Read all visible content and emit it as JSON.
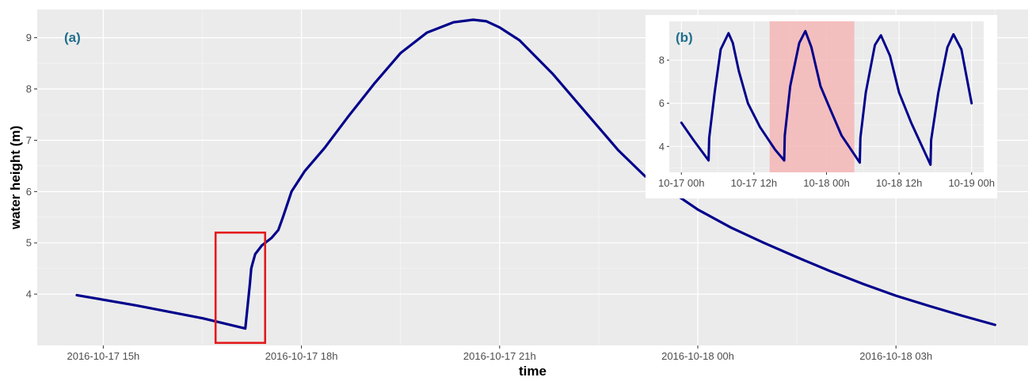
{
  "chart_data": [
    {
      "type": "line",
      "panel_label": "(a)",
      "xlabel": "time",
      "ylabel": "water height (m)",
      "x_tick_labels": [
        "2016-10-17 15h",
        "2016-10-17 18h",
        "2016-10-17 21h",
        "2016-10-18 00h",
        "2016-10-18 03h"
      ],
      "x_tick_hours": [
        15,
        18,
        21,
        24,
        27
      ],
      "y_ticks": [
        4,
        5,
        6,
        7,
        8,
        9
      ],
      "xlim_hours": [
        14.0,
        29.0
      ],
      "ylim": [
        3.0,
        9.55
      ],
      "grid": true,
      "line_color": "#00008b",
      "highlight_box": {
        "x": [
          16.7,
          17.45
        ],
        "y": [
          3.05,
          5.2
        ],
        "color": "#e31a1c"
      },
      "series": [
        {
          "x_hours": [
            14.6,
            15.5,
            16.5,
            17.15,
            17.22,
            17.24,
            17.26,
            17.3,
            17.4,
            17.55,
            17.65,
            17.72,
            17.85,
            18.05,
            18.35,
            18.7,
            19.1,
            19.5,
            19.9,
            20.3,
            20.6,
            20.8,
            21.0,
            21.3,
            21.8,
            22.3,
            22.8,
            23.2,
            23.6,
            24.0,
            24.5,
            25.0,
            25.5,
            26.0,
            26.5,
            27.0,
            27.5,
            28.0,
            28.5
          ],
          "y": [
            3.98,
            3.78,
            3.53,
            3.33,
            4.2,
            4.5,
            4.6,
            4.78,
            4.95,
            5.1,
            5.25,
            5.5,
            6.0,
            6.4,
            6.85,
            7.45,
            8.1,
            8.7,
            9.1,
            9.3,
            9.35,
            9.32,
            9.2,
            8.95,
            8.3,
            7.55,
            6.8,
            6.3,
            6.0,
            5.65,
            5.3,
            5.0,
            4.72,
            4.45,
            4.2,
            3.97,
            3.77,
            3.58,
            3.4
          ]
        }
      ]
    },
    {
      "type": "line",
      "panel_label": "(b)",
      "x_tick_labels": [
        "10-17 00h",
        "10-17 12h",
        "10-18 00h",
        "10-18 12h",
        "10-19 00h"
      ],
      "x_tick_hours": [
        0,
        12,
        24,
        36,
        48
      ],
      "y_ticks": [
        4,
        6,
        8
      ],
      "xlim_hours": [
        -2.0,
        50.0
      ],
      "ylim": [
        2.8,
        9.8
      ],
      "grid": true,
      "line_color": "#00008b",
      "highlight_band": {
        "x": [
          14.6,
          28.6
        ],
        "color": "#f4b6b6"
      },
      "series": [
        {
          "x_hours": [
            0,
            2,
            4.5,
            4.6,
            5.5,
            6.5,
            7.8,
            8.5,
            9.5,
            11,
            13,
            15.5,
            17,
            17.1,
            18,
            19.5,
            20.5,
            21.5,
            23,
            24.5,
            26.5,
            29.5,
            29.6,
            30.5,
            32,
            33,
            34.5,
            36,
            38,
            41.2,
            41.3,
            42.5,
            44,
            45,
            46.3,
            48
          ],
          "y": [
            5.1,
            4.3,
            3.35,
            4.4,
            6.5,
            8.5,
            9.25,
            8.8,
            7.5,
            6.0,
            4.9,
            3.85,
            3.35,
            4.5,
            6.8,
            8.8,
            9.35,
            8.6,
            6.8,
            5.8,
            4.5,
            3.25,
            4.4,
            6.5,
            8.7,
            9.15,
            8.2,
            6.5,
            5.1,
            3.15,
            4.3,
            6.5,
            8.6,
            9.2,
            8.5,
            6.0
          ]
        }
      ]
    }
  ]
}
